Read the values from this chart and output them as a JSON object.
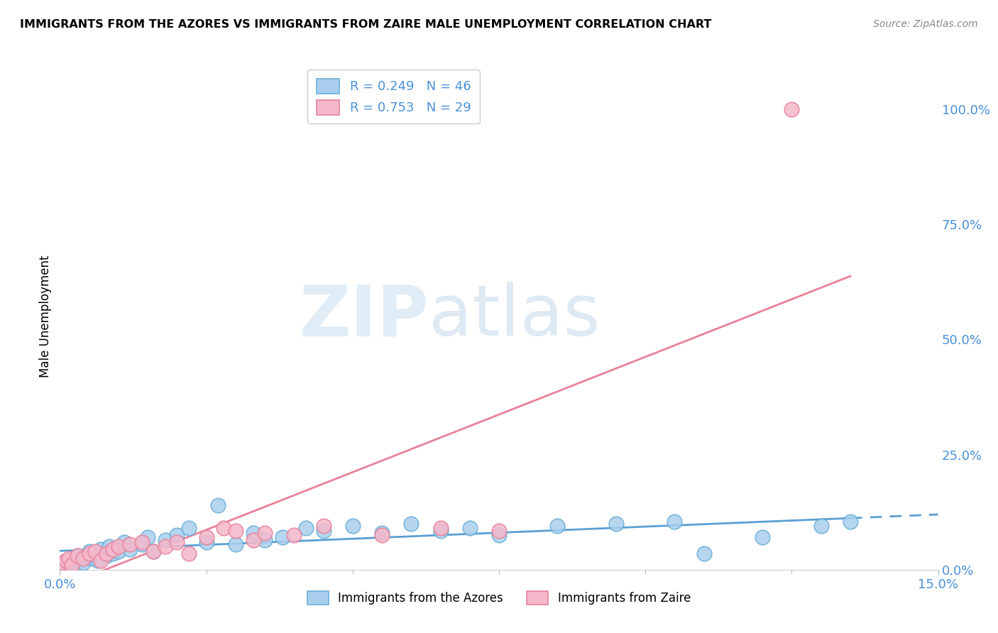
{
  "title": "IMMIGRANTS FROM THE AZORES VS IMMIGRANTS FROM ZAIRE MALE UNEMPLOYMENT CORRELATION CHART",
  "source": "Source: ZipAtlas.com",
  "ylabel": "Male Unemployment",
  "ytick_labels": [
    "0.0%",
    "25.0%",
    "50.0%",
    "75.0%",
    "100.0%"
  ],
  "ytick_values": [
    0,
    25,
    50,
    75,
    100
  ],
  "xlim": [
    0,
    15
  ],
  "ylim": [
    0,
    110
  ],
  "legend_r_azores": "R = 0.249",
  "legend_n_azores": "N = 46",
  "legend_r_zaire": "R = 0.753",
  "legend_n_zaire": "N = 29",
  "legend_label_azores": "Immigrants from the Azores",
  "legend_label_zaire": "Immigrants from Zaire",
  "color_azores_face": "#aacfee",
  "color_zaire_face": "#f5b8cb",
  "color_azores_edge": "#6aaed6",
  "color_zaire_edge": "#e8829a",
  "color_azores_line": "#5a9fd4",
  "color_zaire_line": "#e8829a",
  "color_text_blue": "#4a90d9",
  "color_grid": "#d0d0d0",
  "watermark_zip": "ZIP",
  "watermark_atlas": "atlas",
  "azores_x": [
    0.05,
    0.1,
    0.15,
    0.2,
    0.25,
    0.3,
    0.35,
    0.4,
    0.5,
    0.55,
    0.6,
    0.65,
    0.7,
    0.8,
    0.85,
    0.9,
    1.0,
    1.1,
    1.2,
    1.4,
    1.5,
    1.6,
    1.8,
    2.0,
    2.2,
    2.5,
    2.7,
    3.0,
    3.3,
    3.5,
    3.8,
    4.2,
    4.5,
    5.0,
    5.5,
    6.0,
    6.5,
    7.0,
    7.5,
    8.5,
    9.5,
    10.5,
    11.0,
    12.0,
    13.0,
    13.5
  ],
  "azores_y": [
    1.5,
    2.0,
    1.0,
    2.5,
    1.5,
    3.0,
    2.0,
    1.5,
    4.0,
    2.5,
    3.5,
    2.0,
    4.5,
    3.0,
    5.0,
    3.5,
    4.0,
    6.0,
    4.5,
    5.5,
    7.0,
    4.0,
    6.5,
    7.5,
    9.0,
    6.0,
    14.0,
    5.5,
    8.0,
    6.5,
    7.0,
    9.0,
    8.5,
    9.5,
    8.0,
    10.0,
    8.5,
    9.0,
    7.5,
    9.5,
    10.0,
    10.5,
    3.5,
    7.0,
    9.5,
    10.5
  ],
  "zaire_x": [
    0.05,
    0.1,
    0.15,
    0.2,
    0.3,
    0.4,
    0.5,
    0.6,
    0.7,
    0.8,
    0.9,
    1.0,
    1.2,
    1.4,
    1.6,
    1.8,
    2.0,
    2.2,
    2.5,
    2.8,
    3.0,
    3.3,
    3.5,
    4.0,
    4.5,
    5.5,
    6.5,
    7.5,
    12.5
  ],
  "zaire_y": [
    1.5,
    2.0,
    2.5,
    1.0,
    3.0,
    2.5,
    3.5,
    4.0,
    2.0,
    3.5,
    4.5,
    5.0,
    5.5,
    6.0,
    4.0,
    5.0,
    6.0,
    3.5,
    7.0,
    9.0,
    8.5,
    6.5,
    8.0,
    7.5,
    9.5,
    7.5,
    9.0,
    8.5,
    100.0
  ]
}
